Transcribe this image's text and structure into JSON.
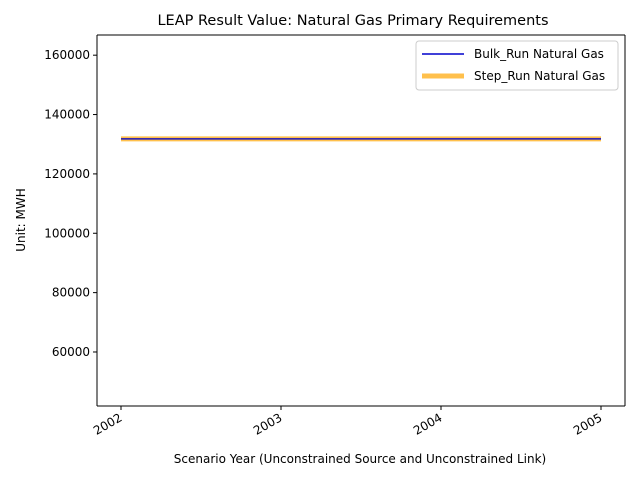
{
  "chart_data": {
    "type": "line",
    "title": "LEAP Result Value: Natural Gas Primary Requirements",
    "xlabel": "Scenario Year (Unconstrained Source and Unconstrained Link)",
    "ylabel": "Unit: MWH",
    "x": [
      2002,
      2003,
      2004,
      2005
    ],
    "x_tick_labels": [
      "2002",
      "2003",
      "2004",
      "2005"
    ],
    "y_ticks": [
      60000,
      80000,
      100000,
      120000,
      140000,
      160000
    ],
    "y_tick_labels": [
      "60000",
      "80000",
      "100000",
      "120000",
      "140000",
      "160000"
    ],
    "xlim": [
      2001.85,
      2005.15
    ],
    "ylim": [
      41800,
      166800
    ],
    "legend_position": "top-right",
    "series": [
      {
        "name": "Bulk_Run Natural Gas",
        "values": [
          131800,
          131800,
          131800,
          131800
        ],
        "color": "#0000cc"
      },
      {
        "name": "Step_Run Natural Gas",
        "values": [
          131800,
          131800,
          131800,
          131800
        ],
        "color": "#ffa500"
      }
    ]
  }
}
